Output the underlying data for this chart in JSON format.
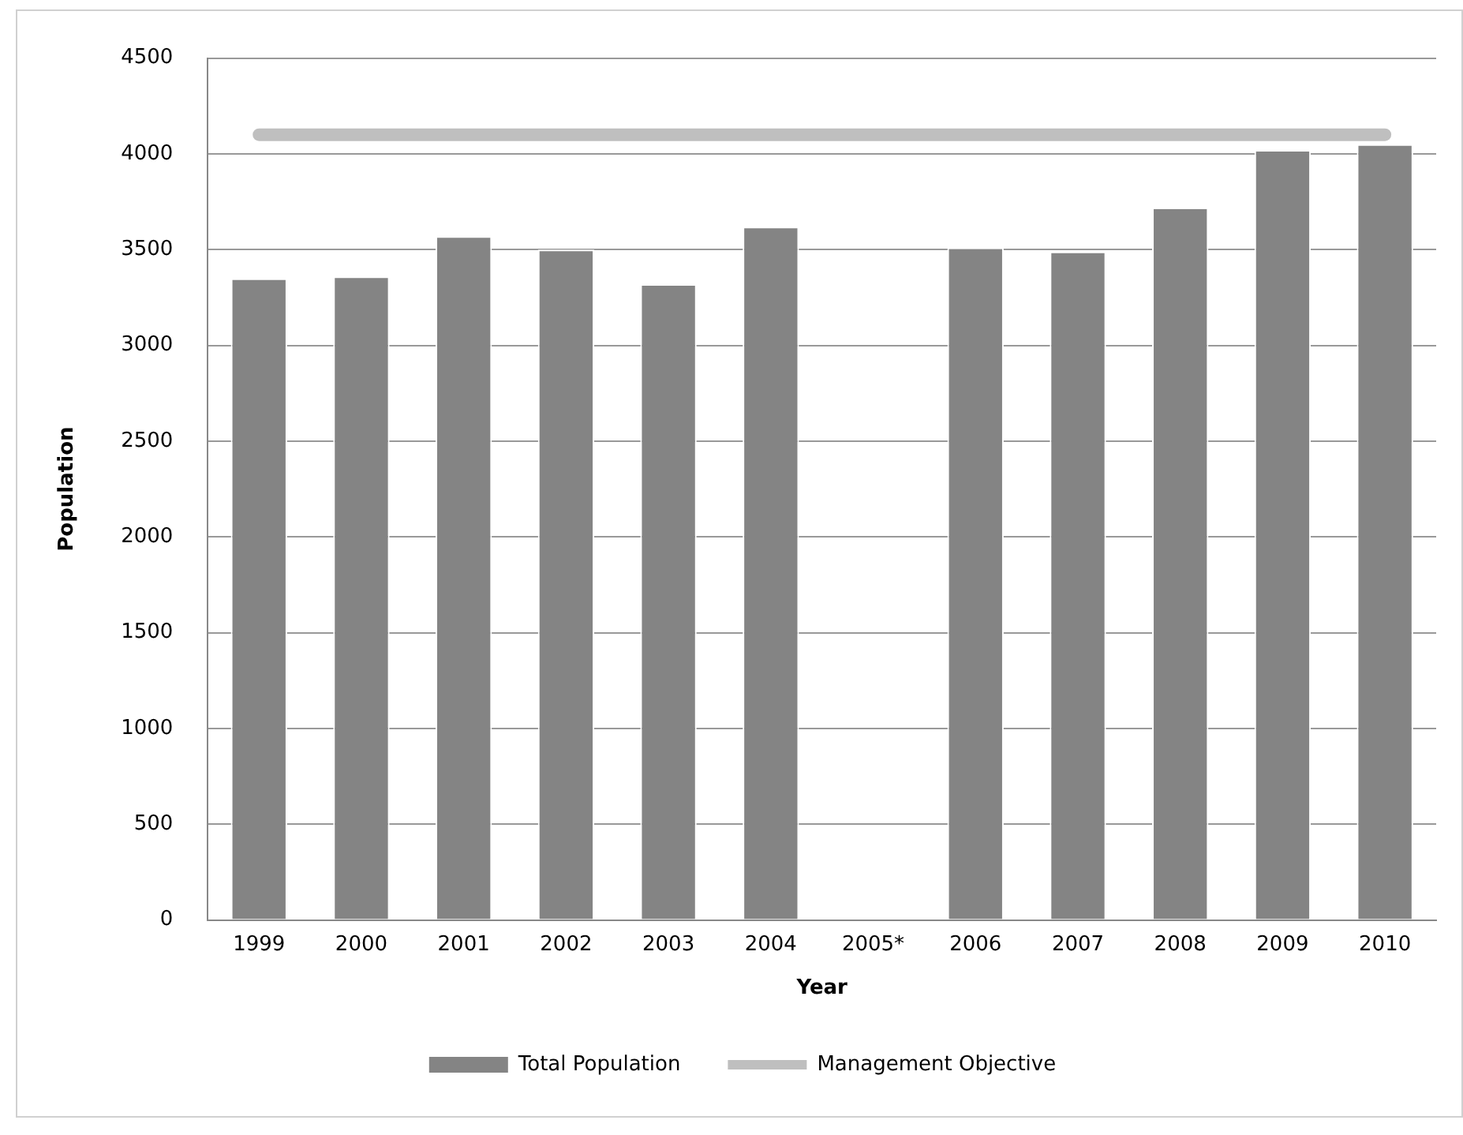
{
  "chart_data": {
    "type": "bar",
    "xlabel": "Year",
    "ylabel": "Population",
    "categories": [
      "1999",
      "2000",
      "2001",
      "2002",
      "2003",
      "2004",
      "2005*",
      "2006",
      "2007",
      "2008",
      "2009",
      "2010"
    ],
    "series": [
      {
        "name": "Total Population",
        "color": "#848484",
        "values": [
          3350,
          3360,
          3570,
          3500,
          3320,
          3620,
          null,
          3510,
          3490,
          3720,
          4020,
          4050
        ]
      },
      {
        "name": "Management Objective",
        "type": "line",
        "color": "#bfbfbf",
        "values": [
          4100,
          4100,
          4100,
          4100,
          4100,
          4100,
          4100,
          4100,
          4100,
          4100,
          4100,
          4100
        ]
      }
    ],
    "ylim": [
      0,
      4500
    ],
    "yticks": [
      0,
      500,
      1000,
      1500,
      2000,
      2500,
      3000,
      3500,
      4000,
      4500
    ],
    "grid": "y",
    "legend": "bottom",
    "marker": "none",
    "line_style": "solid"
  }
}
